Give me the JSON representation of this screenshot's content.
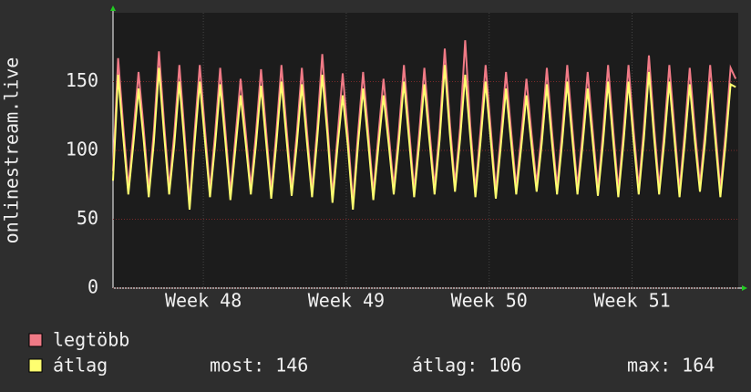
{
  "chart_data": {
    "type": "line",
    "y_label": "onlinestream.live",
    "ylim": [
      0,
      200
    ],
    "yticks": [
      0,
      50,
      100,
      150
    ],
    "grid": true,
    "xlim": [
      0,
      122.5
    ],
    "xticks": [
      {
        "value": 17.7,
        "label": "Week 48"
      },
      {
        "value": 45.7,
        "label": "Week 49"
      },
      {
        "value": 73.7,
        "label": "Week 50"
      },
      {
        "value": 101.7,
        "label": "Week 51"
      }
    ],
    "series": [
      {
        "name": "legtöbb",
        "color": "#f07a86",
        "values": [
          85,
          167,
          118,
          73,
          113,
          157,
          116,
          71,
          114,
          172,
          120,
          73,
          112,
          162,
          113,
          62,
          114,
          162,
          116,
          71,
          112,
          160,
          115,
          69,
          110,
          152,
          113,
          73,
          112,
          159,
          114,
          70,
          113,
          162,
          116,
          72,
          112,
          160,
          114,
          71,
          116,
          170,
          120,
          67,
          111,
          156,
          112,
          62,
          112,
          157,
          114,
          69,
          111,
          152,
          113,
          73,
          114,
          162,
          116,
          71,
          113,
          160,
          115,
          73,
          116,
          174,
          120,
          75,
          116,
          180,
          118,
          71,
          114,
          162,
          116,
          70,
          112,
          157,
          114,
          73,
          111,
          152,
          112,
          75,
          113,
          160,
          114,
          73,
          114,
          162,
          116,
          73,
          112,
          157,
          114,
          72,
          113,
          162,
          115,
          71,
          113,
          162,
          115,
          73,
          116,
          169,
          118,
          73,
          114,
          162,
          116,
          71,
          113,
          160,
          115,
          75,
          114,
          162,
          116,
          71,
          112,
          160,
          152
        ]
      },
      {
        "name": "átlag",
        "color": "#ffff70",
        "values": [
          78,
          155,
          110,
          68,
          105,
          145,
          108,
          66,
          106,
          160,
          112,
          68,
          104,
          150,
          105,
          57,
          106,
          150,
          108,
          66,
          104,
          148,
          107,
          64,
          102,
          140,
          105,
          68,
          104,
          147,
          106,
          65,
          105,
          150,
          108,
          67,
          104,
          148,
          106,
          66,
          108,
          155,
          112,
          62,
          103,
          140,
          104,
          57,
          104,
          145,
          106,
          64,
          103,
          140,
          105,
          68,
          106,
          150,
          108,
          66,
          105,
          148,
          107,
          68,
          108,
          162,
          112,
          70,
          108,
          155,
          110,
          66,
          106,
          150,
          108,
          65,
          104,
          145,
          106,
          68,
          103,
          140,
          104,
          70,
          105,
          148,
          106,
          68,
          106,
          150,
          108,
          68,
          104,
          145,
          106,
          67,
          105,
          150,
          107,
          66,
          105,
          150,
          107,
          68,
          108,
          157,
          110,
          68,
          106,
          150,
          108,
          66,
          105,
          148,
          107,
          70,
          106,
          150,
          108,
          66,
          104,
          148,
          146
        ]
      }
    ],
    "stats": [
      {
        "label": "most:",
        "value": 146
      },
      {
        "label": "átlag:",
        "value": 106
      },
      {
        "label": "max:",
        "value": 164
      }
    ]
  }
}
